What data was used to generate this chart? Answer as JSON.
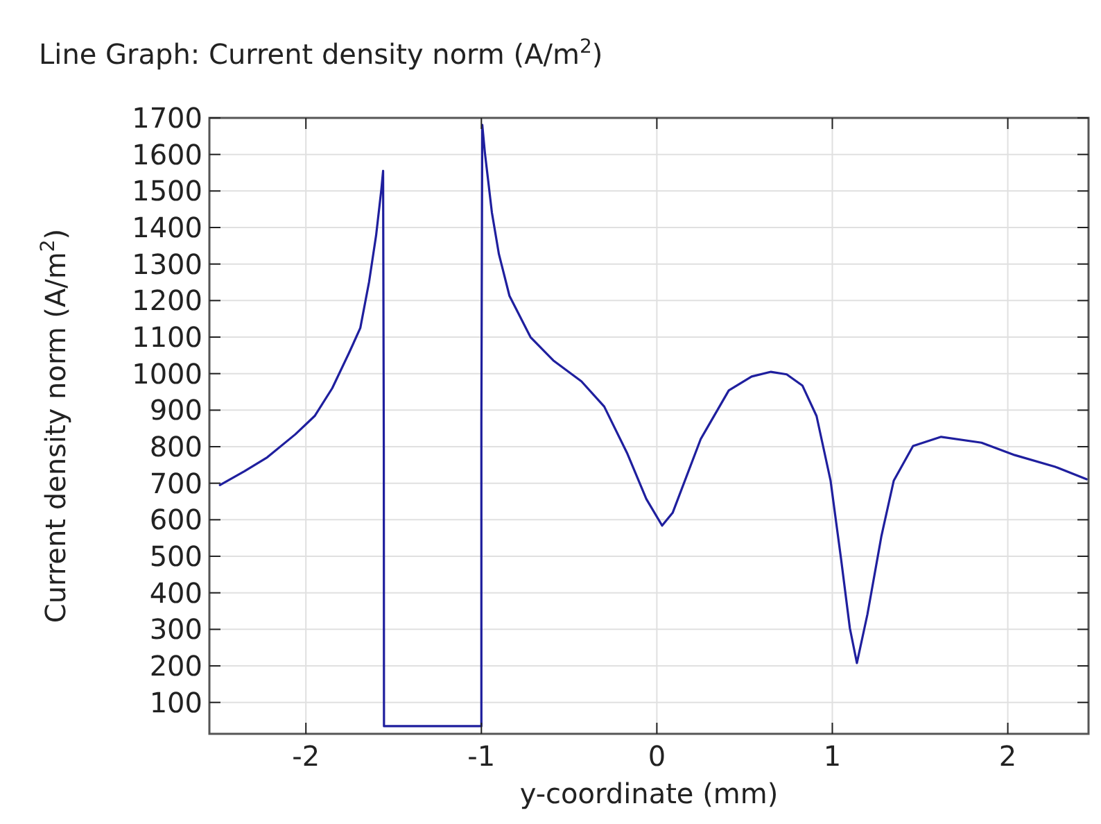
{
  "chart_data": {
    "type": "line",
    "title": "Line Graph: Current density norm (A/m$^{2}$)",
    "xlabel": "y-coordinate (mm)",
    "ylabel": "Current density norm (A/m$^{2}$)",
    "xlim": [
      -2.55,
      2.46
    ],
    "ylim": [
      14,
      1700
    ],
    "xticks": [
      -2,
      -1,
      0,
      1,
      2
    ],
    "yticks": [
      100,
      200,
      300,
      400,
      500,
      600,
      700,
      800,
      900,
      1000,
      1100,
      1200,
      1300,
      1400,
      1500,
      1600,
      1700
    ],
    "grid": true,
    "marker": "none",
    "line_style": "solid",
    "series": [
      {
        "color": "#1f1f9e",
        "x": [
          -2.49,
          -2.35,
          -2.22,
          -2.06,
          -1.95,
          -1.85,
          -1.75,
          -1.69,
          -1.64,
          -1.6,
          -1.57,
          -1.56,
          -1.556,
          -1.555,
          -1.0,
          -1.0,
          -0.995,
          -0.98,
          -0.94,
          -0.9,
          -0.84,
          -0.72,
          -0.59,
          -0.43,
          -0.3,
          -0.17,
          -0.06,
          0.03,
          0.09,
          0.25,
          0.41,
          0.54,
          0.65,
          0.74,
          0.83,
          0.91,
          0.99,
          1.05,
          1.1,
          1.14,
          1.2,
          1.28,
          1.35,
          1.46,
          1.62,
          1.85,
          2.04,
          2.27,
          2.45
        ],
        "values": [
          695,
          733,
          771,
          834,
          884,
          960,
          1061,
          1125,
          1251,
          1378,
          1504,
          1555,
          796,
          35,
          35,
          859,
          1681,
          1605,
          1441,
          1327,
          1213,
          1100,
          1036,
          979,
          910,
          783,
          657,
          584,
          619,
          821,
          954,
          992,
          1005,
          998,
          967,
          884,
          707,
          492,
          303,
          208,
          341,
          556,
          707,
          802,
          827,
          811,
          777,
          745,
          711
        ]
      }
    ]
  }
}
